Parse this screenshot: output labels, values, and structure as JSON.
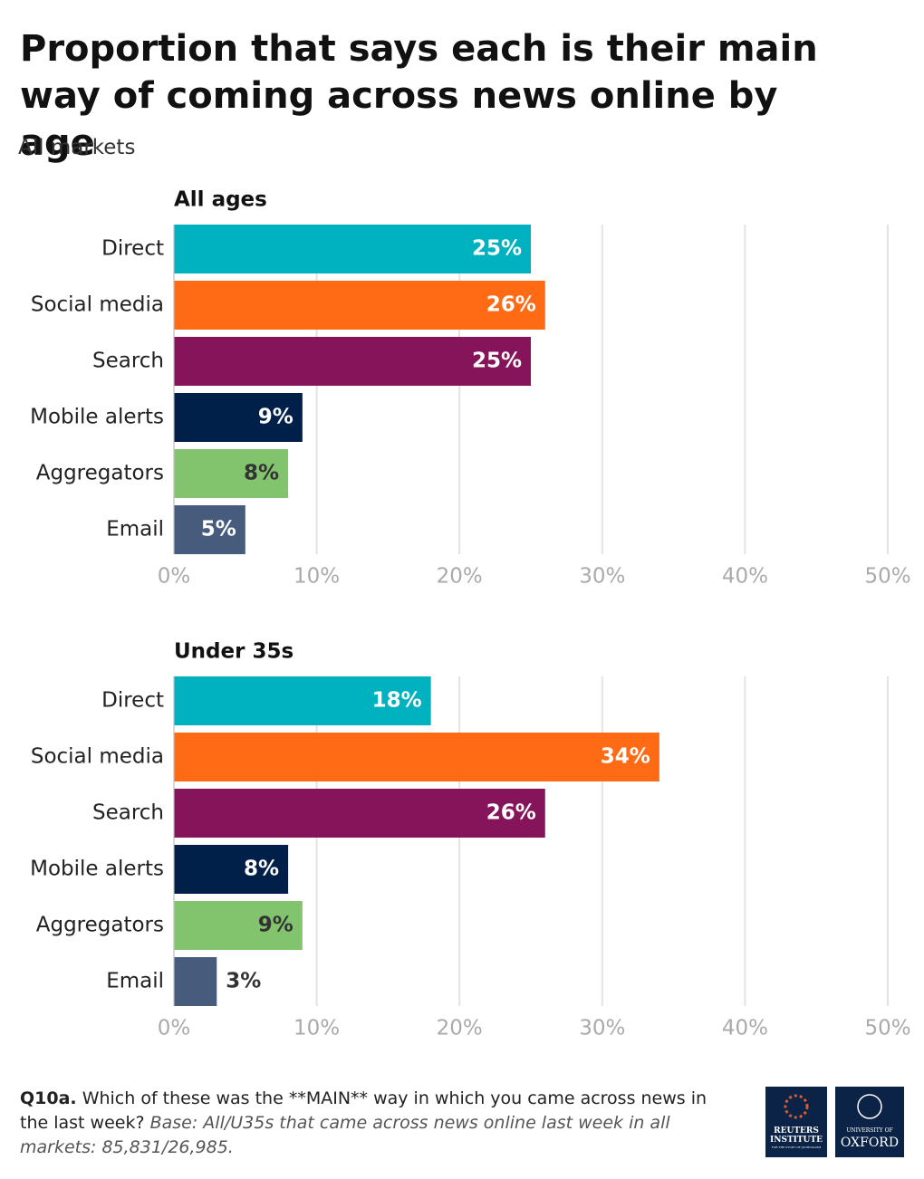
{
  "header": {
    "title": "Proportion that says each is their main way of coming across news online by age",
    "subtitle": "All markets"
  },
  "chart_data": [
    {
      "type": "bar",
      "orientation": "horizontal",
      "title": "All ages",
      "categories": [
        "Direct",
        "Social media",
        "Search",
        "Mobile alerts",
        "Aggregators",
        "Email"
      ],
      "values": [
        25,
        26,
        25,
        9,
        8,
        5
      ],
      "value_labels": [
        "25%",
        "26%",
        "25%",
        "9%",
        "8%",
        "5%"
      ],
      "colors": [
        "#00b2bf",
        "#ff6a14",
        "#86145a",
        "#00204a",
        "#82c46e",
        "#475c7d"
      ],
      "xlim": [
        0,
        50
      ],
      "xticks": [
        {
          "value": 0,
          "label": "0%"
        },
        {
          "value": 10,
          "label": "10%"
        },
        {
          "value": 20,
          "label": "20%"
        },
        {
          "value": 30,
          "label": "30%"
        },
        {
          "value": 40,
          "label": "40%"
        },
        {
          "value": 50,
          "label": "50%"
        }
      ],
      "grid": true
    },
    {
      "type": "bar",
      "orientation": "horizontal",
      "title": "Under 35s",
      "categories": [
        "Direct",
        "Social media",
        "Search",
        "Mobile alerts",
        "Aggregators",
        "Email"
      ],
      "values": [
        18,
        34,
        26,
        8,
        9,
        3
      ],
      "value_labels": [
        "18%",
        "34%",
        "26%",
        "8%",
        "9%",
        "3%"
      ],
      "colors": [
        "#00b2bf",
        "#ff6a14",
        "#86145a",
        "#00204a",
        "#82c46e",
        "#475c7d"
      ],
      "xlim": [
        0,
        50
      ],
      "xticks": [
        {
          "value": 0,
          "label": "0%"
        },
        {
          "value": 10,
          "label": "10%"
        },
        {
          "value": 20,
          "label": "20%"
        },
        {
          "value": 30,
          "label": "30%"
        },
        {
          "value": 40,
          "label": "40%"
        },
        {
          "value": 50,
          "label": "50%"
        }
      ],
      "grid": true
    }
  ],
  "footer": {
    "question_id": "Q10a.",
    "question": "Which of these was the **MAIN** way in which you came across news in the last week?",
    "base": "Base: All/U35s that came across news online last week in all markets: 85,831/26,985."
  },
  "logos": {
    "reuters": "REUTERS INSTITUTE",
    "reuters_sub": "FOR THE STUDY OF JOURNALISM",
    "oxford_top": "UNIVERSITY OF",
    "oxford": "OXFORD"
  }
}
